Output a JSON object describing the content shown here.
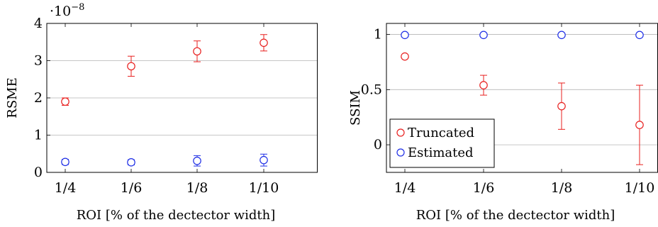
{
  "chart_data": [
    {
      "type": "scatter",
      "categories": [
        "1/4",
        "1/6",
        "1/8",
        "1/10"
      ],
      "xlabel": "ROI [% of the dectector width]",
      "ylabel": "RSME",
      "ylim": [
        0,
        4
      ],
      "yticks": [
        0,
        1,
        2,
        3,
        4
      ],
      "y_multiplier": {
        "base": "·10",
        "exponent": "−8"
      },
      "grid": "horizontal",
      "series": [
        {
          "color": "#e8201f",
          "marker": "circle",
          "values": [
            1.9,
            2.85,
            3.25,
            3.48
          ],
          "errors": [
            0.1,
            0.27,
            0.28,
            0.22
          ]
        },
        {
          "color": "#1f2fe6",
          "marker": "circle",
          "values": [
            0.28,
            0.27,
            0.31,
            0.33
          ],
          "errors": [
            0.07,
            0.07,
            0.14,
            0.16
          ]
        }
      ]
    },
    {
      "type": "scatter",
      "categories": [
        "1/4",
        "1/6",
        "1/8",
        "1/10"
      ],
      "xlabel": "ROI [% of the dectector width]",
      "ylabel": "SSIM",
      "ylim": [
        -0.25,
        1.1
      ],
      "yticks": [
        0,
        0.5,
        1
      ],
      "ytick_labels": [
        "0",
        "0.5",
        "1"
      ],
      "grid": "horizontal",
      "legend_position": "bottom-left",
      "series": [
        {
          "name": "Truncated",
          "color": "#e8201f",
          "marker": "circle",
          "values": [
            0.8,
            0.54,
            0.35,
            0.18
          ],
          "errors": [
            0.015,
            0.09,
            0.21,
            0.36
          ]
        },
        {
          "name": "Estimated",
          "color": "#1f2fe6",
          "marker": "circle",
          "values": [
            0.995,
            0.995,
            0.995,
            0.995
          ],
          "errors": [
            0.003,
            0.003,
            0.003,
            0.003
          ]
        }
      ]
    }
  ]
}
